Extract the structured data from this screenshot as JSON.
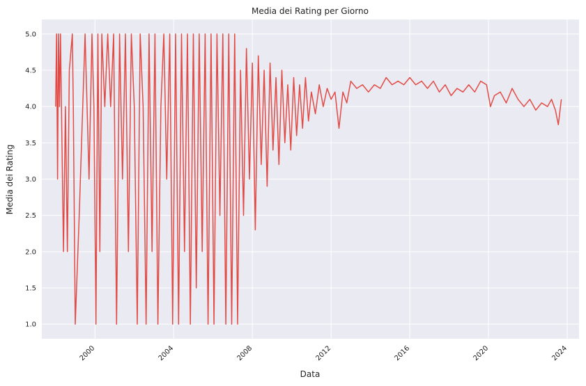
{
  "chart_data": {
    "type": "line",
    "title": "Media dei Rating per Giorno",
    "xlabel": "Data",
    "ylabel": "Media dei Rating",
    "xlim": [
      1997.3,
      2024.6
    ],
    "ylim": [
      0.8,
      5.2
    ],
    "x_ticks": [
      "2000",
      "2004",
      "2008",
      "2012",
      "2016",
      "2020",
      "2024"
    ],
    "y_ticks": [
      "1.0",
      "1.5",
      "2.0",
      "2.5",
      "3.0",
      "3.5",
      "4.0",
      "4.5",
      "5.0"
    ],
    "grid": true,
    "series_color": "#e24a45",
    "background_color": "#eaeaf2",
    "series": [
      {
        "x": [
          1998.0,
          1998.05,
          1998.1,
          1998.15,
          1998.2,
          1998.25,
          1998.3,
          1998.4,
          1998.5,
          1998.6,
          1998.7,
          1998.85,
          1998.9,
          1999.0,
          1999.2,
          1999.5,
          1999.7,
          1999.85,
          1999.95,
          2000.05,
          2000.15,
          2000.25,
          2000.35,
          2000.5,
          2000.65,
          2000.8,
          2000.95,
          2001.1,
          2001.25,
          2001.4,
          2001.55,
          2001.7,
          2001.85,
          2002.0,
          2002.15,
          2002.3,
          2002.45,
          2002.6,
          2002.75,
          2002.9,
          2003.05,
          2003.2,
          2003.35,
          2003.5,
          2003.65,
          2003.8,
          2003.95,
          2004.1,
          2004.25,
          2004.4,
          2004.55,
          2004.7,
          2004.85,
          2005.0,
          2005.15,
          2005.3,
          2005.45,
          2005.6,
          2005.75,
          2005.9,
          2006.05,
          2006.2,
          2006.35,
          2006.5,
          2006.65,
          2006.8,
          2006.95,
          2007.1,
          2007.25,
          2007.4,
          2007.55,
          2007.7,
          2007.85,
          2008.0,
          2008.15,
          2008.3,
          2008.45,
          2008.6,
          2008.75,
          2008.9,
          2009.05,
          2009.2,
          2009.35,
          2009.5,
          2009.65,
          2009.8,
          2009.95,
          2010.1,
          2010.25,
          2010.4,
          2010.55,
          2010.7,
          2010.85,
          2011.0,
          2011.2,
          2011.4,
          2011.6,
          2011.8,
          2012.0,
          2012.2,
          2012.4,
          2012.6,
          2012.8,
          2013.0,
          2013.3,
          2013.6,
          2013.9,
          2014.2,
          2014.5,
          2014.8,
          2015.1,
          2015.4,
          2015.7,
          2016.0,
          2016.3,
          2016.6,
          2016.9,
          2017.2,
          2017.5,
          2017.8,
          2018.1,
          2018.4,
          2018.7,
          2019.0,
          2019.3,
          2019.6,
          2019.9,
          2020.1,
          2020.3,
          2020.6,
          2020.9,
          2021.2,
          2021.5,
          2021.8,
          2022.1,
          2022.4,
          2022.7,
          2023.0,
          2023.2,
          2023.4,
          2023.55,
          2023.7
        ],
        "y": [
          4.0,
          5.0,
          3.0,
          5.0,
          4.0,
          5.0,
          4.0,
          2.0,
          4.0,
          2.0,
          4.5,
          5.0,
          4.0,
          1.0,
          2.5,
          5.0,
          3.0,
          5.0,
          4.0,
          1.0,
          5.0,
          2.0,
          5.0,
          4.0,
          5.0,
          4.0,
          5.0,
          1.0,
          5.0,
          3.0,
          5.0,
          2.0,
          5.0,
          4.0,
          1.0,
          5.0,
          4.0,
          1.0,
          5.0,
          2.0,
          5.0,
          1.0,
          4.0,
          5.0,
          3.0,
          5.0,
          1.0,
          5.0,
          1.0,
          5.0,
          2.0,
          5.0,
          1.0,
          5.0,
          1.5,
          5.0,
          2.0,
          5.0,
          1.0,
          5.0,
          1.0,
          5.0,
          2.5,
          5.0,
          1.0,
          5.0,
          1.0,
          5.0,
          1.0,
          4.5,
          2.5,
          4.8,
          3.0,
          4.6,
          2.3,
          4.7,
          3.2,
          4.5,
          2.9,
          4.6,
          3.4,
          4.4,
          3.2,
          4.5,
          3.5,
          4.3,
          3.4,
          4.4,
          3.6,
          4.3,
          3.7,
          4.4,
          3.8,
          4.2,
          3.9,
          4.3,
          4.0,
          4.25,
          4.1,
          4.2,
          3.7,
          4.2,
          4.05,
          4.35,
          4.25,
          4.3,
          4.2,
          4.3,
          4.25,
          4.4,
          4.3,
          4.35,
          4.3,
          4.4,
          4.3,
          4.35,
          4.25,
          4.35,
          4.2,
          4.3,
          4.15,
          4.25,
          4.2,
          4.3,
          4.2,
          4.35,
          4.3,
          4.0,
          4.15,
          4.2,
          4.05,
          4.25,
          4.1,
          4.0,
          4.1,
          3.95,
          4.05,
          4.0,
          4.1,
          3.95,
          3.75,
          4.1
        ]
      }
    ]
  }
}
